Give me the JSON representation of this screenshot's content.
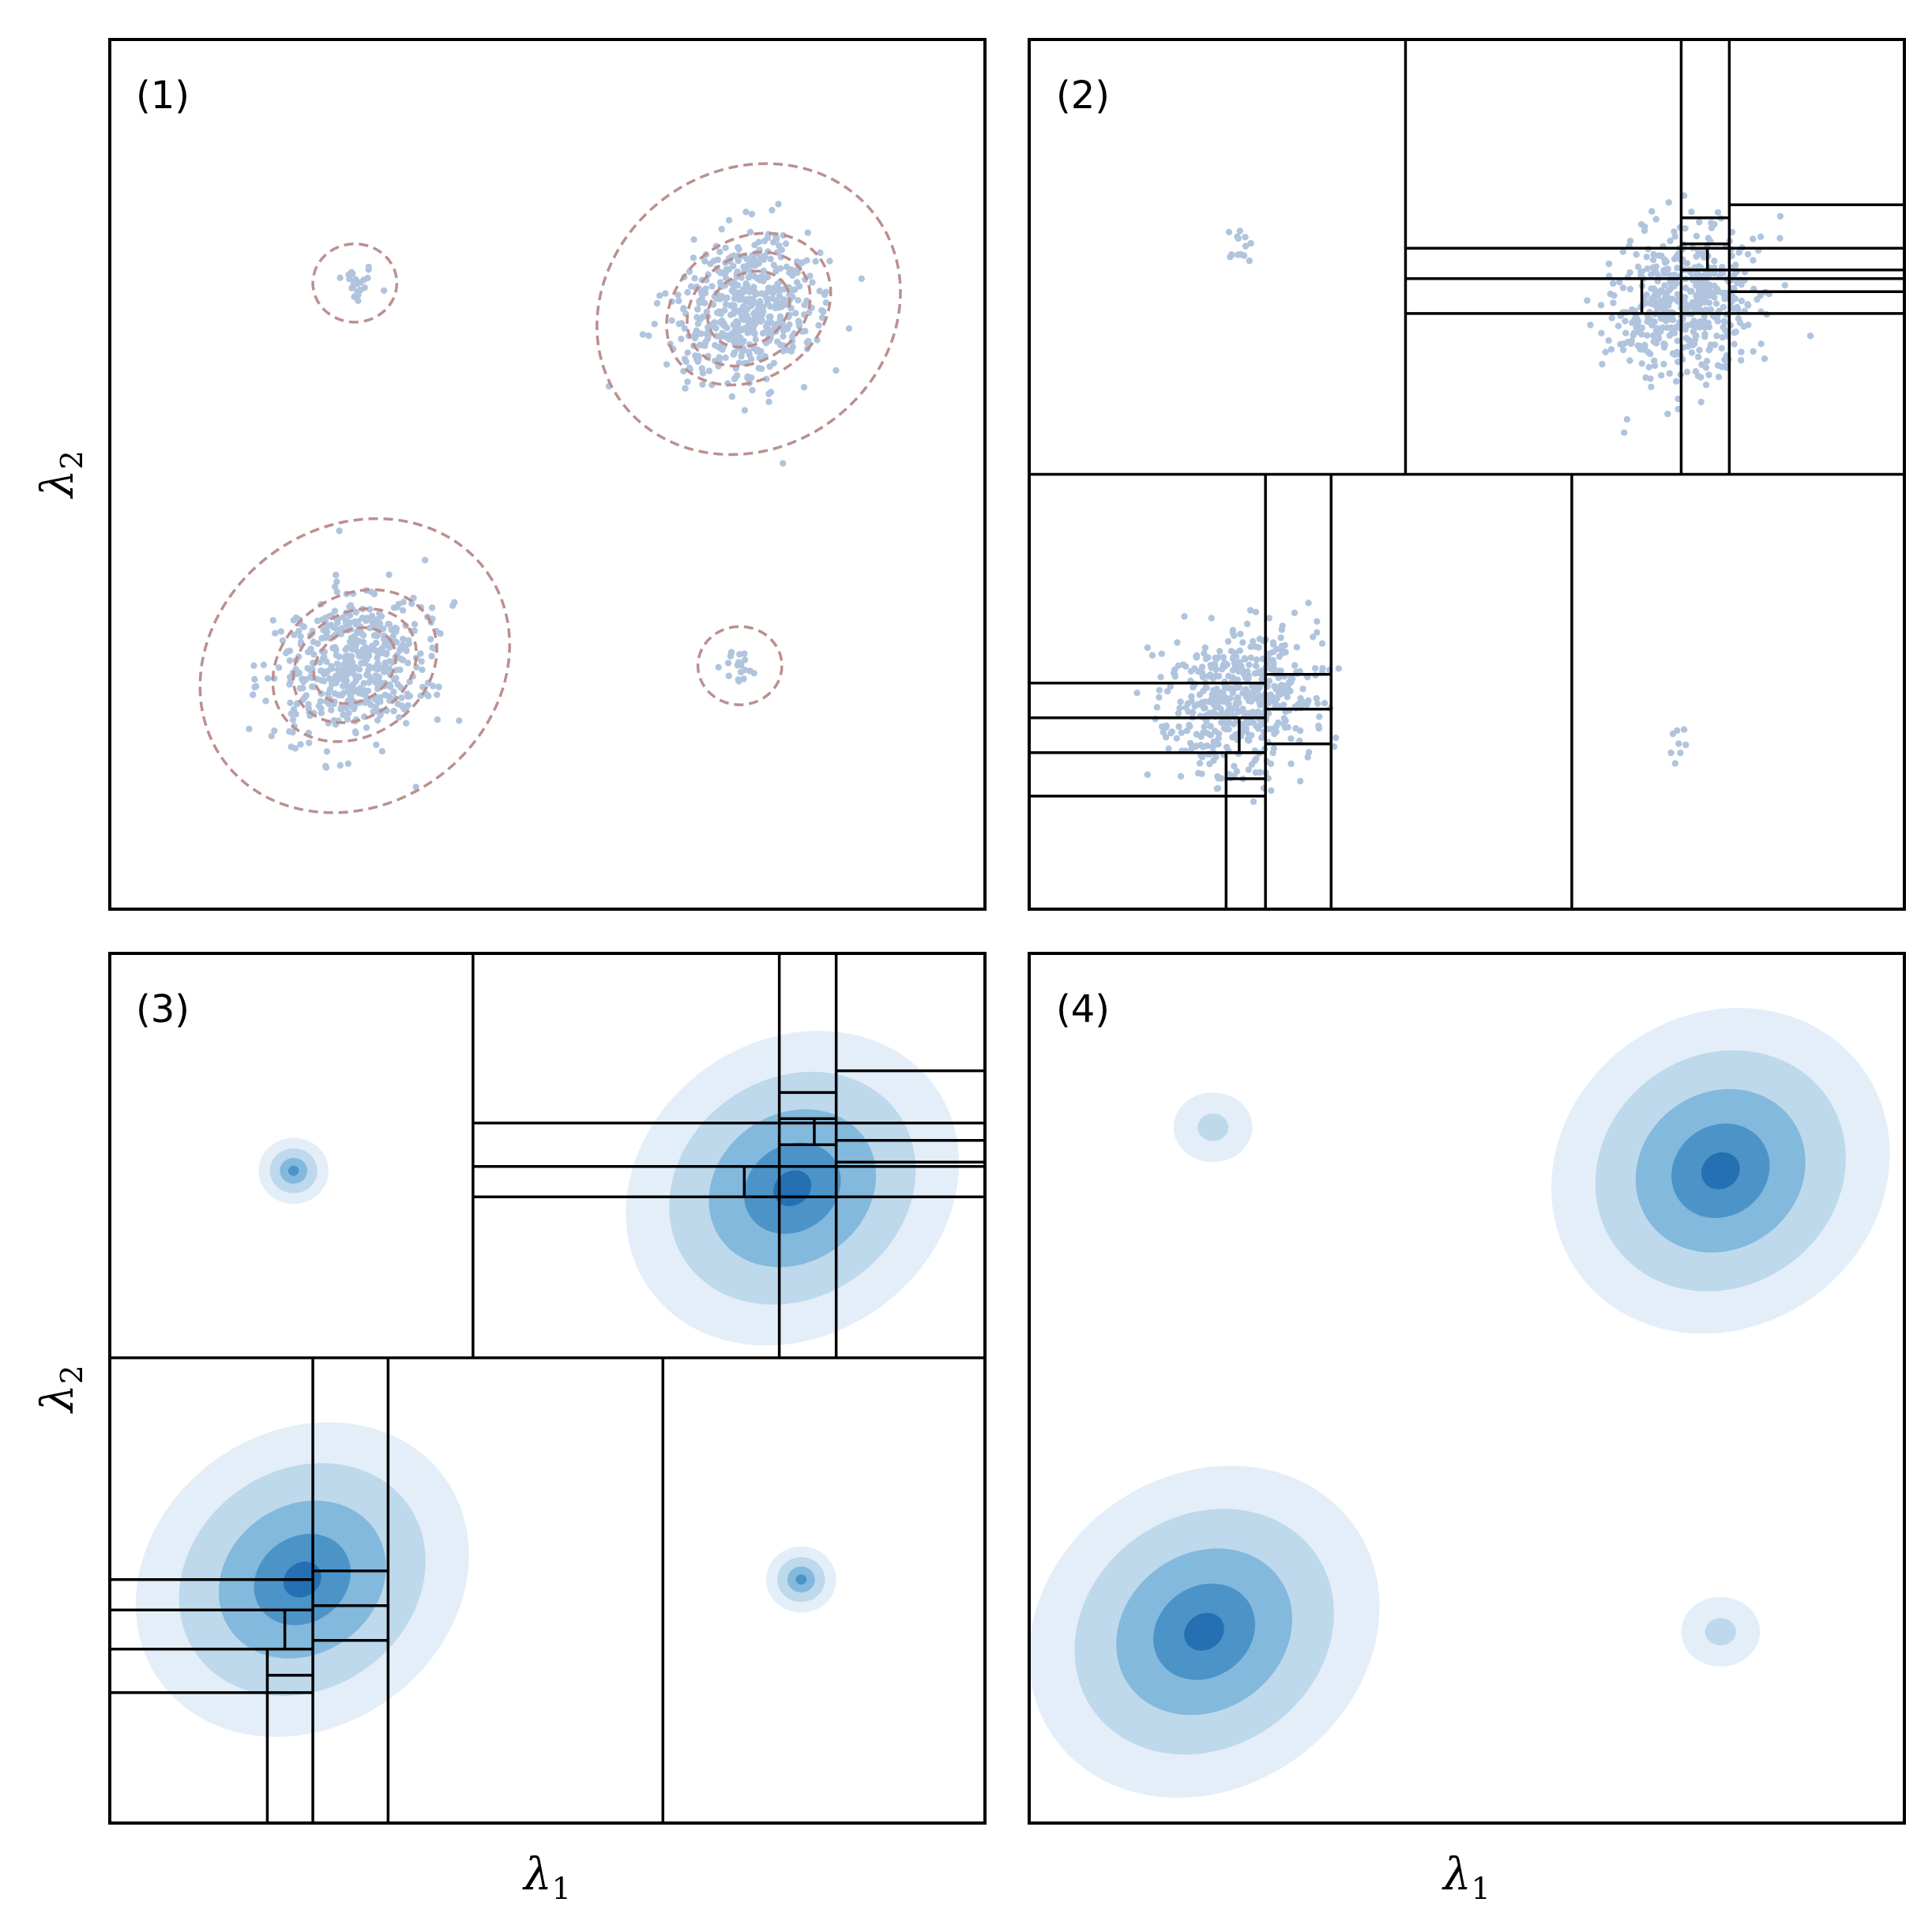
{
  "chart_data": [
    {
      "id": 1,
      "type": "scatter",
      "panel_label": "(1)",
      "xlabel": "",
      "ylabel": "λ2",
      "xlim": [
        0,
        1
      ],
      "ylim": [
        0,
        1
      ],
      "ticks": "none",
      "grid": false,
      "colors": {
        "points": "#b0c4de",
        "contour": "#bc8f8f"
      },
      "clusters": [
        {
          "center": [
            0.28,
            0.72
          ],
          "spread": [
            0.012,
            0.012
          ],
          "n": 22,
          "contour_radii": [
            [
              0.048,
              0.045
            ]
          ]
        },
        {
          "center": [
            0.73,
            0.69
          ],
          "spread": [
            0.045,
            0.04
          ],
          "n": 520,
          "angle": 35,
          "contour_radii": [
            [
              0.18,
              0.16
            ],
            [
              0.05,
              0.04
            ],
            [
              0.075,
              0.06
            ],
            [
              0.1,
              0.08
            ]
          ]
        },
        {
          "center": [
            0.28,
            0.28
          ],
          "spread": [
            0.045,
            0.04
          ],
          "n": 520,
          "angle": 35,
          "contour_radii": [
            [
              0.185,
              0.16
            ],
            [
              0.05,
              0.04
            ],
            [
              0.075,
              0.06
            ],
            [
              0.1,
              0.08
            ]
          ]
        },
        {
          "center": [
            0.72,
            0.28
          ],
          "spread": [
            0.01,
            0.01
          ],
          "n": 18,
          "contour_radii": [
            [
              0.048,
              0.045
            ]
          ]
        }
      ]
    },
    {
      "id": 2,
      "type": "scatter",
      "panel_label": "(2)",
      "xlabel": "",
      "ylabel": "",
      "xlim": [
        0,
        1
      ],
      "ylim": [
        0,
        1
      ],
      "ticks": "none",
      "grid": false,
      "colors": {
        "points": "#b0c4de",
        "partition": "#000000"
      },
      "clusters": [
        {
          "center": [
            0.24,
            0.76
          ],
          "spread": [
            0.01,
            0.012
          ],
          "n": 14
        },
        {
          "center": [
            0.75,
            0.7
          ],
          "spread": [
            0.045,
            0.04
          ],
          "n": 520,
          "angle": 35
        },
        {
          "center": [
            0.24,
            0.24
          ],
          "spread": [
            0.045,
            0.04
          ],
          "n": 520,
          "angle": 35
        },
        {
          "center": [
            0.75,
            0.19
          ],
          "spread": [
            0.008,
            0.01
          ],
          "n": 8
        }
      ],
      "partition_lines": [
        [
          0,
          1,
          0.5,
          0.5
        ],
        [
          0.43,
          0.43,
          0.5,
          1
        ],
        [
          0.745,
          0.745,
          0.5,
          1
        ],
        [
          0.8,
          0.8,
          0.5,
          1
        ],
        [
          0.43,
          1,
          0.685,
          0.685
        ],
        [
          0.43,
          1,
          0.725,
          0.725
        ],
        [
          0.43,
          1,
          0.76,
          0.76
        ],
        [
          0.8,
          1,
          0.81,
          0.81
        ],
        [
          0.8,
          1,
          0.735,
          0.735
        ],
        [
          0.8,
          1,
          0.71,
          0.71
        ],
        [
          0.745,
          0.8,
          0.795,
          0.795
        ],
        [
          0.745,
          0.8,
          0.765,
          0.765
        ],
        [
          0.745,
          0.8,
          0.735,
          0.735
        ],
        [
          0.7,
          0.7,
          0.685,
          0.725
        ],
        [
          0.775,
          0.775,
          0.735,
          0.76
        ],
        [
          0.27,
          0.27,
          0,
          0.5
        ],
        [
          0.345,
          0.345,
          0,
          0.5
        ],
        [
          0.62,
          0.62,
          0,
          0.5
        ],
        [
          0,
          0.27,
          0.26,
          0.26
        ],
        [
          0,
          0.27,
          0.22,
          0.22
        ],
        [
          0,
          0.27,
          0.18,
          0.18
        ],
        [
          0,
          0.27,
          0.13,
          0.13
        ],
        [
          0.27,
          0.345,
          0.27,
          0.27
        ],
        [
          0.27,
          0.345,
          0.19,
          0.19
        ],
        [
          0.27,
          0.345,
          0.23,
          0.23
        ],
        [
          0.225,
          0.27,
          0.15,
          0.15
        ],
        [
          0.225,
          0.27,
          0.18,
          0.18
        ],
        [
          0.225,
          0.225,
          0,
          0.18
        ],
        [
          0.24,
          0.24,
          0.18,
          0.22
        ]
      ]
    },
    {
      "id": 3,
      "type": "heatmap",
      "panel_label": "(3)",
      "xlabel": "λ1",
      "ylabel": "λ2",
      "xlim": [
        0,
        1
      ],
      "ylim": [
        0,
        1
      ],
      "ticks": "none",
      "grid": false,
      "colors": {
        "levels": [
          "#e3eef8",
          "#bed8ec",
          "#83b9dc",
          "#4c94c8",
          "#2470b3"
        ],
        "partition": "#000000"
      },
      "blobs": [
        {
          "center": [
            0.21,
            0.75
          ],
          "radii": [
            0.04,
            0.038
          ],
          "angle": 0,
          "levels": 4
        },
        {
          "center": [
            0.78,
            0.73
          ],
          "radii": [
            0.2,
            0.17
          ],
          "angle": 35,
          "levels": 5
        },
        {
          "center": [
            0.22,
            0.28
          ],
          "radii": [
            0.2,
            0.17
          ],
          "angle": 35,
          "levels": 5
        },
        {
          "center": [
            0.79,
            0.28
          ],
          "radii": [
            0.04,
            0.038
          ],
          "angle": 0,
          "levels": 4
        }
      ],
      "partition_lines": [
        [
          0,
          1,
          0.535,
          0.535
        ],
        [
          0.415,
          0.415,
          0.535,
          1
        ],
        [
          0.765,
          0.765,
          0.535,
          1
        ],
        [
          0.83,
          0.83,
          0.535,
          1
        ],
        [
          0.415,
          1,
          0.72,
          0.72
        ],
        [
          0.415,
          1,
          0.755,
          0.755
        ],
        [
          0.415,
          1,
          0.805,
          0.805
        ],
        [
          0.83,
          1,
          0.865,
          0.865
        ],
        [
          0.83,
          1,
          0.785,
          0.785
        ],
        [
          0.83,
          1,
          0.76,
          0.76
        ],
        [
          0.765,
          0.83,
          0.84,
          0.84
        ],
        [
          0.765,
          0.83,
          0.81,
          0.81
        ],
        [
          0.765,
          0.83,
          0.78,
          0.78
        ],
        [
          0.725,
          0.725,
          0.72,
          0.755
        ],
        [
          0.805,
          0.805,
          0.78,
          0.81
        ],
        [
          0.232,
          0.232,
          0,
          0.535
        ],
        [
          0.318,
          0.318,
          0,
          0.535
        ],
        [
          0.632,
          0.632,
          0,
          0.535
        ],
        [
          0,
          0.232,
          0.28,
          0.28
        ],
        [
          0,
          0.232,
          0.245,
          0.245
        ],
        [
          0,
          0.232,
          0.2,
          0.2
        ],
        [
          0,
          0.232,
          0.15,
          0.15
        ],
        [
          0.232,
          0.318,
          0.29,
          0.29
        ],
        [
          0.232,
          0.318,
          0.21,
          0.21
        ],
        [
          0.232,
          0.318,
          0.25,
          0.25
        ],
        [
          0.18,
          0.232,
          0.17,
          0.17
        ],
        [
          0.18,
          0.232,
          0.2,
          0.2
        ],
        [
          0.18,
          0.18,
          0,
          0.2
        ],
        [
          0.2,
          0.2,
          0.2,
          0.245
        ]
      ]
    },
    {
      "id": 4,
      "type": "heatmap",
      "panel_label": "(4)",
      "xlabel": "λ1",
      "ylabel": "",
      "xlim": [
        0,
        1
      ],
      "ylim": [
        0,
        1
      ],
      "ticks": "none",
      "grid": false,
      "colors": {
        "levels": [
          "#e3eef8",
          "#bed8ec",
          "#83b9dc",
          "#4c94c8",
          "#2470b3"
        ]
      },
      "blobs": [
        {
          "center": [
            0.21,
            0.8
          ],
          "radii": [
            0.045,
            0.04
          ],
          "angle": 0,
          "levels": 2
        },
        {
          "center": [
            0.79,
            0.75
          ],
          "radii": [
            0.2,
            0.18
          ],
          "angle": 35,
          "levels": 5
        },
        {
          "center": [
            0.2,
            0.22
          ],
          "radii": [
            0.21,
            0.18
          ],
          "angle": 35,
          "levels": 5
        },
        {
          "center": [
            0.79,
            0.22
          ],
          "radii": [
            0.045,
            0.04
          ],
          "angle": 0,
          "levels": 2
        }
      ]
    }
  ]
}
